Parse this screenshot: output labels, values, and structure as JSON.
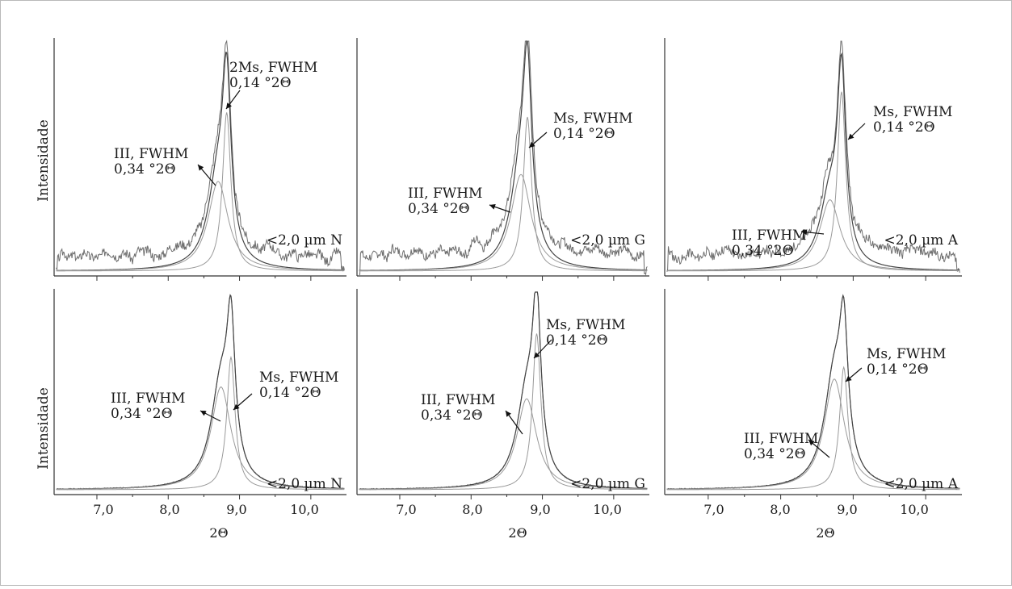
{
  "figure": {
    "ylabel": "Intensidade",
    "xlabel": "2Θ",
    "xtick_labels": [
      "7,0",
      "8,0",
      "9,0",
      "10,0"
    ]
  },
  "chart_data": [
    {
      "type": "line",
      "id": "n-top",
      "row": "top",
      "col": 0,
      "sample": "<2,0 µm N",
      "xlim": [
        6.4,
        10.5
      ],
      "ylim": [
        0,
        1
      ],
      "peaks": [
        {
          "label": "III, FWHM",
          "fwhm_text": "0,34 °2Θ",
          "center": 8.7,
          "height": 0.39,
          "fwhm": 0.34,
          "tail": 0.09
        },
        {
          "label": "2Ms, FWHM",
          "fwhm_text": "0,14 °2Θ",
          "center": 8.82,
          "height": 0.69,
          "fwhm": 0.14,
          "tail": 0.25
        }
      ],
      "noise": {
        "amplitude": 0.05,
        "base": 0.035,
        "period": 0.075,
        "seed": 3
      }
    },
    {
      "type": "line",
      "id": "g-top",
      "row": "top",
      "col": 1,
      "sample": "<2,0 µm G",
      "xlim": [
        6.4,
        10.5
      ],
      "ylim": [
        0,
        1
      ],
      "peaks": [
        {
          "label": "III, FWHM",
          "fwhm_text": "0,34 °2Θ",
          "center": 8.7,
          "height": 0.42,
          "fwhm": 0.34,
          "tail": 0.09
        },
        {
          "label": "Ms, FWHM",
          "fwhm_text": "0,14 °2Θ",
          "center": 8.79,
          "height": 0.67,
          "fwhm": 0.14,
          "tail": 0.25
        }
      ],
      "noise": {
        "amplitude": 0.06,
        "base": 0.045,
        "period": 0.075,
        "seed": 7
      }
    },
    {
      "type": "line",
      "id": "a-top",
      "row": "top",
      "col": 2,
      "sample": "<2,0 µm A",
      "xlim": [
        6.4,
        10.5
      ],
      "ylim": [
        0,
        1
      ],
      "peaks": [
        {
          "label": "III, FWHM",
          "fwhm_text": "0,34 °2Θ",
          "center": 8.68,
          "height": 0.31,
          "fwhm": 0.34,
          "tail": 0.09
        },
        {
          "label": "Ms, FWHM",
          "fwhm_text": "0,14 °2Θ",
          "center": 8.84,
          "height": 0.78,
          "fwhm": 0.14,
          "tail": 0.25
        }
      ],
      "noise": {
        "amplitude": 0.055,
        "base": 0.04,
        "period": 0.075,
        "seed": 11
      }
    },
    {
      "type": "line",
      "id": "n-bottom",
      "row": "bottom",
      "col": 0,
      "sample": "<2,0 µm N",
      "xlim": [
        6.4,
        10.5
      ],
      "ylim": [
        0,
        1
      ],
      "peaks": [
        {
          "label": "III, FWHM",
          "fwhm_text": "0,34 °2Θ",
          "center": 8.74,
          "height": 0.52,
          "fwhm": 0.34,
          "tail": 0.09
        },
        {
          "label": "Ms, FWHM",
          "fwhm_text": "0,14 °2Θ",
          "center": 8.88,
          "height": 0.67,
          "fwhm": 0.14,
          "tail": 0.25
        }
      ],
      "noise": {
        "amplitude": 0.0,
        "base": 0.0,
        "period": 0.075,
        "seed": 1
      }
    },
    {
      "type": "line",
      "id": "g-bottom",
      "row": "bottom",
      "col": 1,
      "sample": "<2,0 µm G",
      "xlim": [
        6.4,
        10.5
      ],
      "ylim": [
        0,
        1
      ],
      "peaks": [
        {
          "label": "III, FWHM",
          "fwhm_text": "0,34 °2Θ",
          "center": 8.78,
          "height": 0.46,
          "fwhm": 0.34,
          "tail": 0.09
        },
        {
          "label": "Ms, FWHM",
          "fwhm_text": "0,14 °2Θ",
          "center": 8.92,
          "height": 0.79,
          "fwhm": 0.14,
          "tail": 0.25
        }
      ],
      "noise": {
        "amplitude": 0.0,
        "base": 0.0,
        "period": 0.075,
        "seed": 1
      }
    },
    {
      "type": "line",
      "id": "a-bottom",
      "row": "bottom",
      "col": 2,
      "sample": "<2,0 µm A",
      "xlim": [
        6.4,
        10.5
      ],
      "ylim": [
        0,
        1
      ],
      "peaks": [
        {
          "label": "III, FWHM",
          "fwhm_text": "0,34 °2Θ",
          "center": 8.74,
          "height": 0.56,
          "fwhm": 0.34,
          "tail": 0.09
        },
        {
          "label": "Ms, FWHM",
          "fwhm_text": "0,14 °2Θ",
          "center": 8.87,
          "height": 0.62,
          "fwhm": 0.14,
          "tail": 0.25
        }
      ],
      "noise": {
        "amplitude": 0.0,
        "base": 0.0,
        "period": 0.075,
        "seed": 1
      }
    }
  ]
}
